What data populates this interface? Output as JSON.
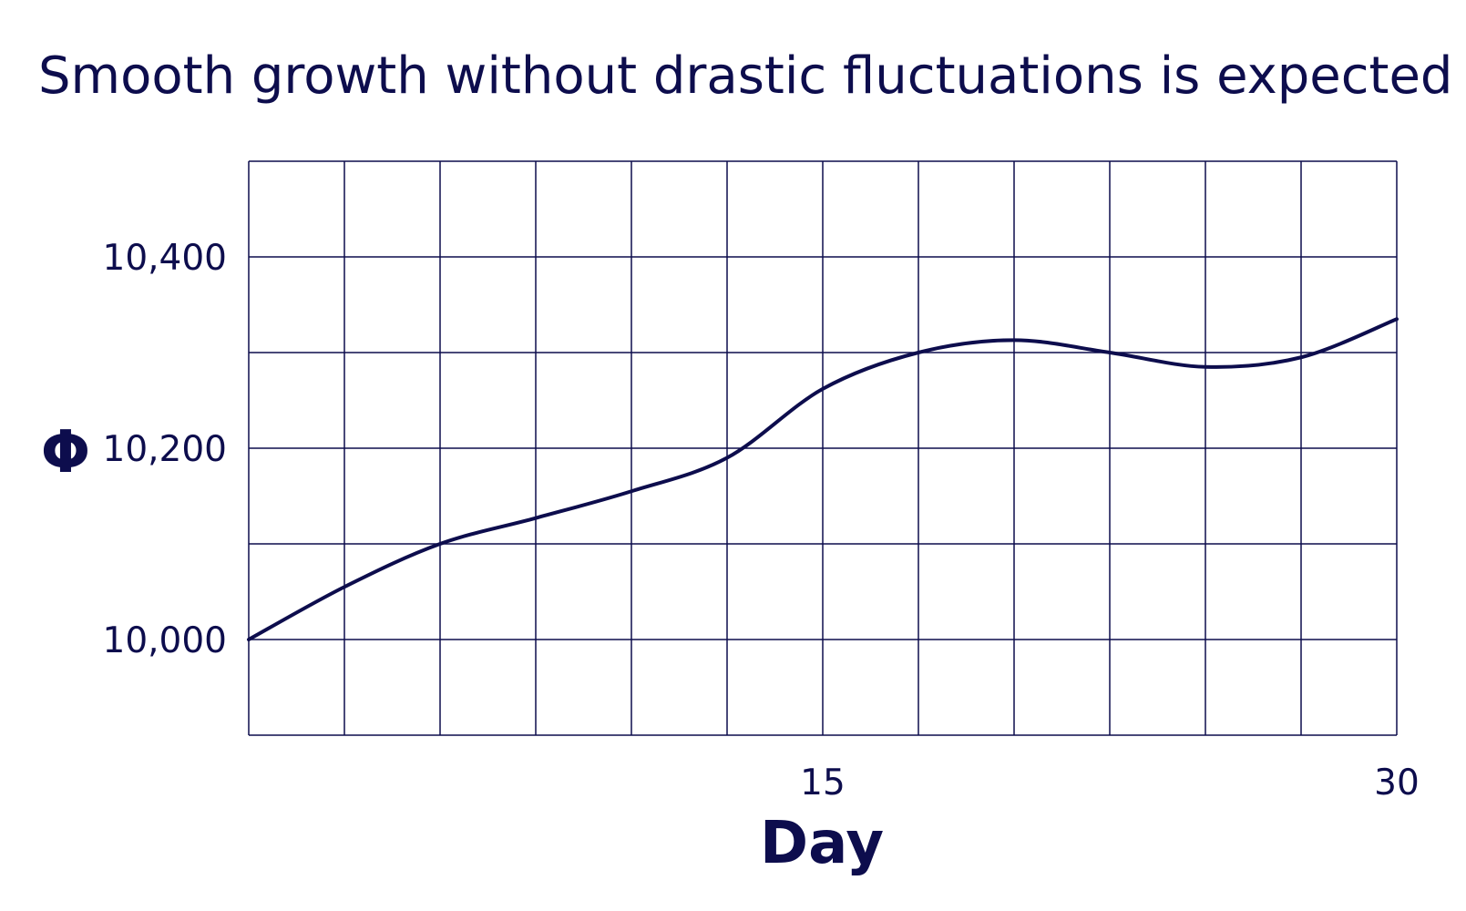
{
  "chart_data": {
    "type": "line",
    "title": "Smooth growth without drastic fluctuations is expected",
    "xlabel": "Day",
    "ylabel": "Φ",
    "xlim": [
      0,
      30
    ],
    "ylim": [
      9900,
      10500
    ],
    "x_grid_step": 2.5,
    "y_grid_step": 100,
    "x_ticks": [
      15,
      30
    ],
    "x_tick_labels": [
      "15",
      "30"
    ],
    "y_ticks": [
      10000,
      10200,
      10400
    ],
    "y_tick_labels": [
      "10,000",
      "10,200",
      "10,400"
    ],
    "grid": true,
    "line_color": "#0d0d4d",
    "series": [
      {
        "x": [
          0,
          2.5,
          5,
          7.5,
          10,
          12.5,
          15,
          17.5,
          20,
          22.5,
          25,
          27.5,
          30
        ],
        "values": [
          10000,
          10055,
          10100,
          10127,
          10155,
          10190,
          10262,
          10300,
          10313,
          10300,
          10285,
          10295,
          10335
        ]
      }
    ]
  }
}
